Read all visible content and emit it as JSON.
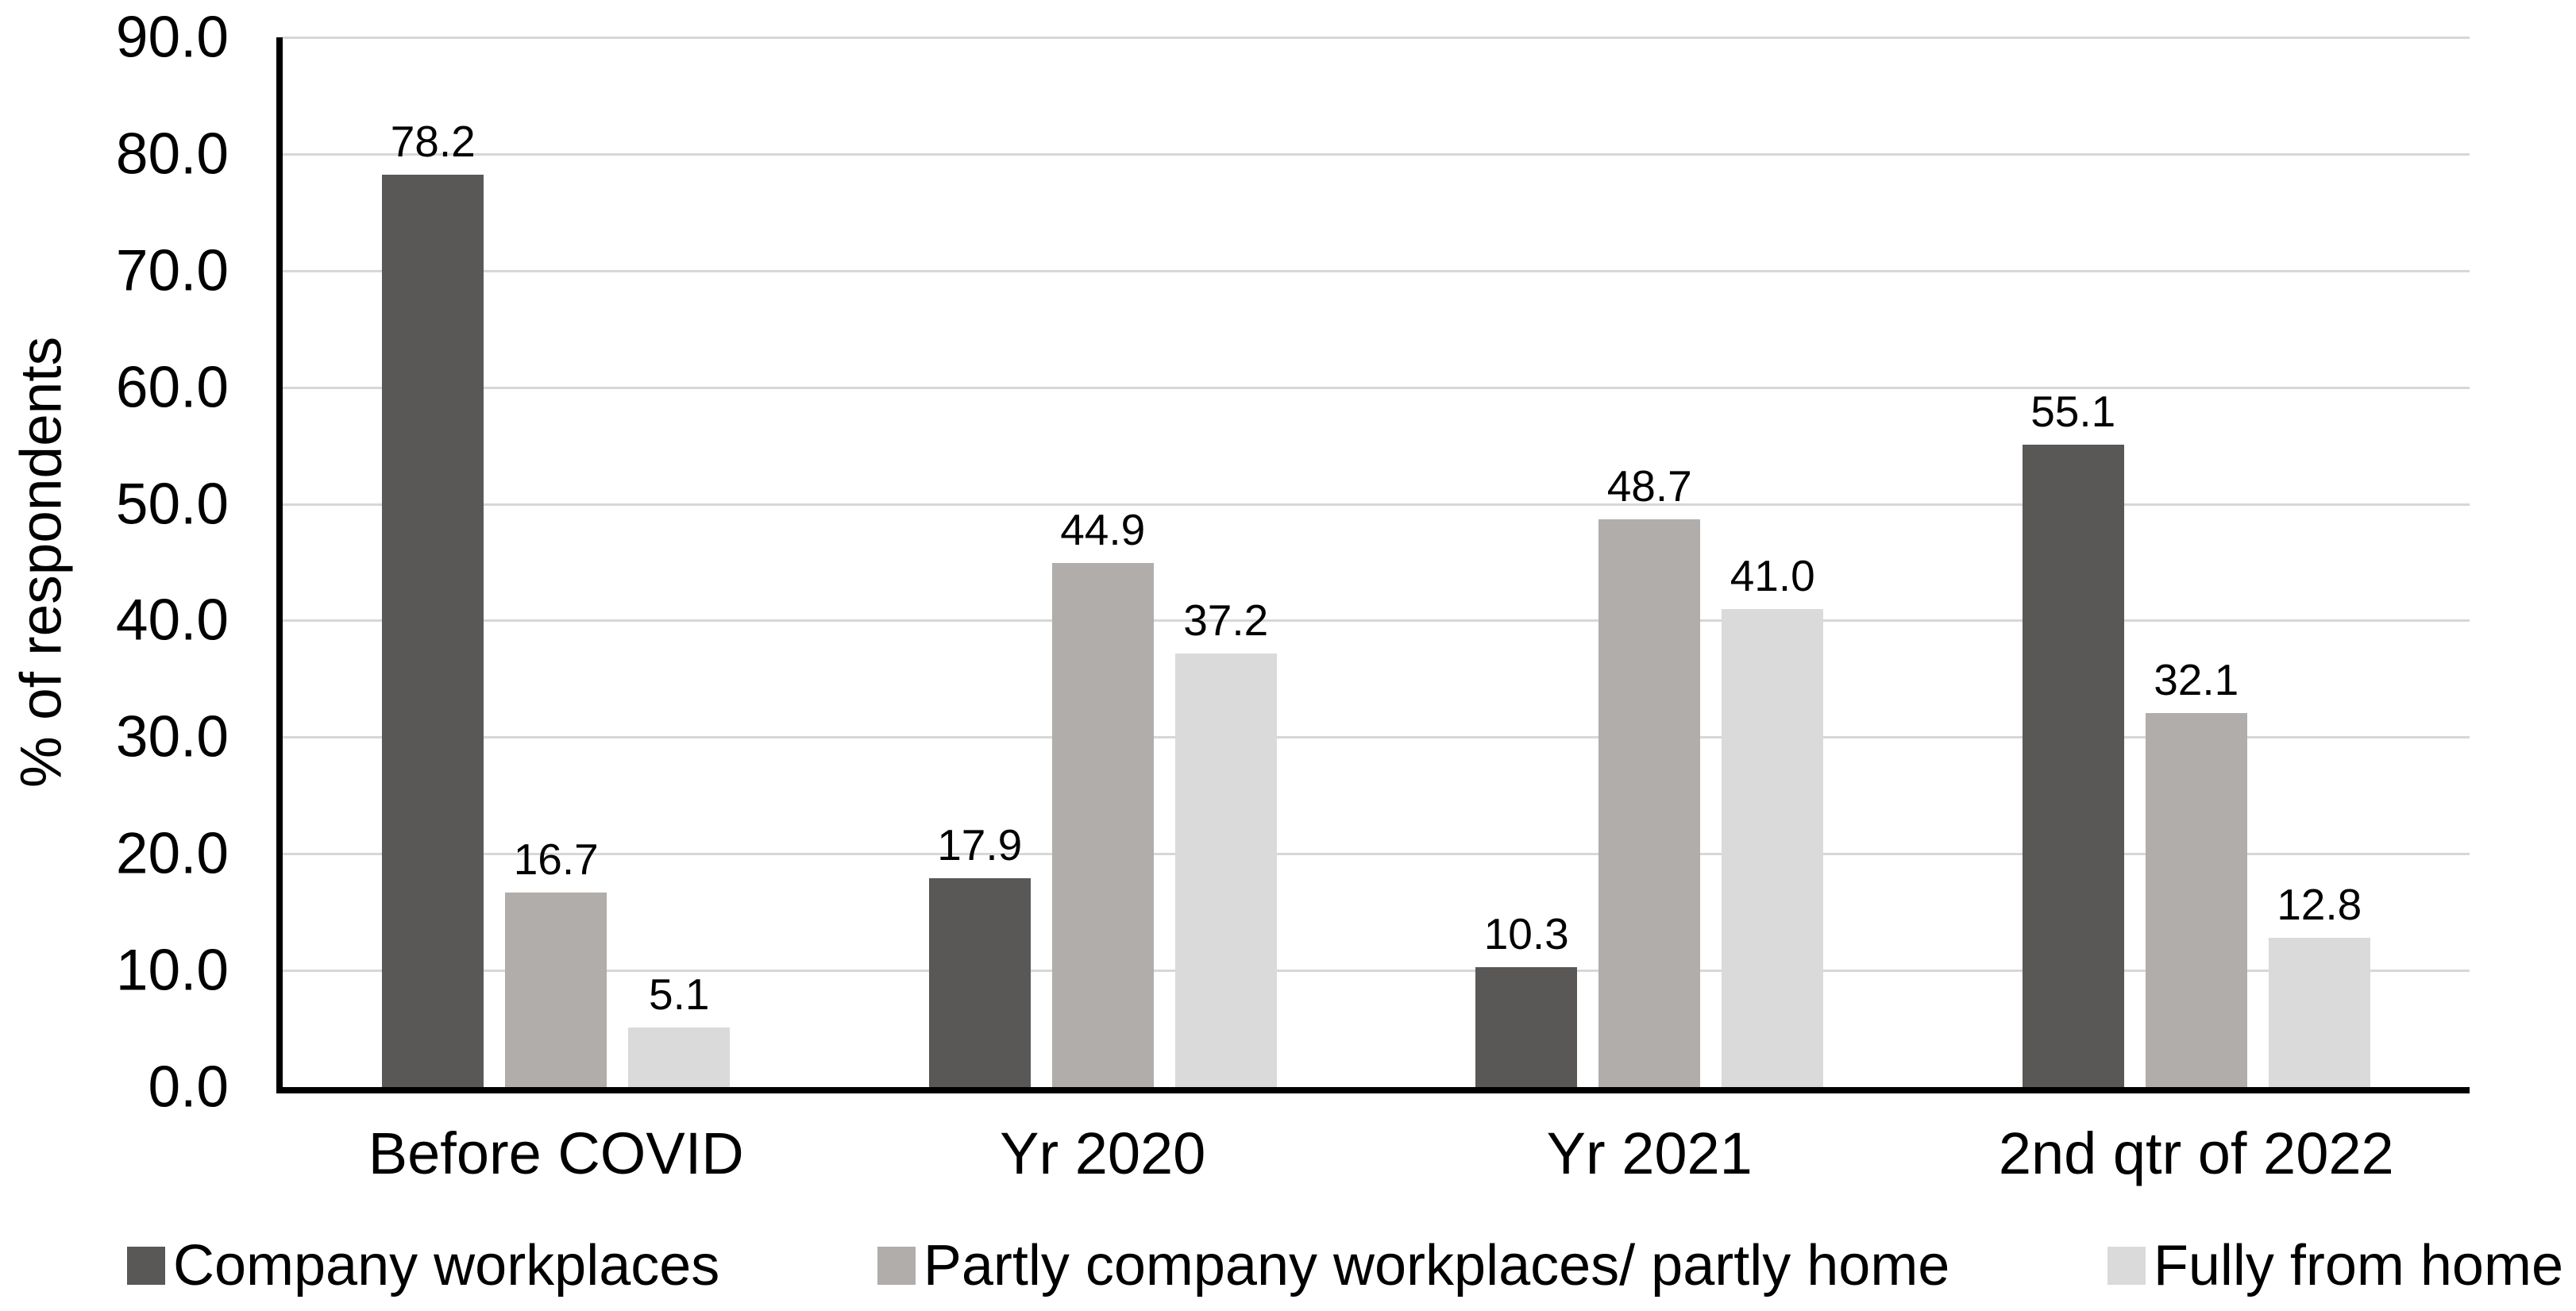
{
  "chart_data": {
    "type": "bar",
    "title": "",
    "ylabel": "% of respondents",
    "xlabel": "",
    "ylim": [
      0,
      90
    ],
    "ytick_step": 10,
    "yticks": [
      "90.0",
      "80.0",
      "70.0",
      "60.0",
      "50.0",
      "40.0",
      "30.0",
      "20.0",
      "10.0",
      "0.0"
    ],
    "grid": true,
    "legend_position": "bottom",
    "value_labels": true,
    "categories": [
      "Before COVID",
      "Yr 2020",
      "Yr 2021",
      "2nd qtr of 2022"
    ],
    "series": [
      {
        "name": "Company workplaces",
        "color": "#595857",
        "values": [
          78.2,
          17.9,
          10.3,
          55.1
        ],
        "labels": [
          "78.2",
          "17.9",
          "10.3",
          "55.1"
        ]
      },
      {
        "name": "Partly company workplaces/ partly home",
        "color": "#b0adaa",
        "values": [
          16.7,
          44.9,
          48.7,
          32.1
        ],
        "labels": [
          "16.7",
          "44.9",
          "48.7",
          "32.1"
        ]
      },
      {
        "name": "Fully from home",
        "color": "#dadada",
        "values": [
          5.1,
          37.2,
          41.0,
          12.8
        ],
        "labels": [
          "5.1",
          "37.2",
          "41.0",
          "12.8"
        ]
      }
    ],
    "colors": {
      "axis_line": "#000000",
      "gridline": "#d7d7d7",
      "text": "#000000",
      "background": "#ffffff"
    }
  }
}
